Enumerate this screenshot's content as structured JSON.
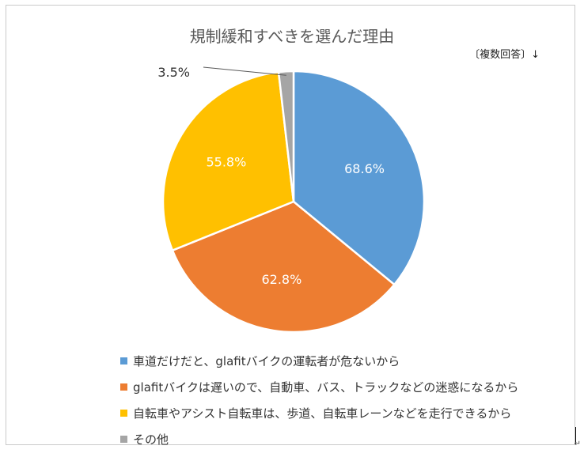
{
  "title": "規制緩和すべきを選んだ理由",
  "note": "〔複数回答〕↓",
  "trail_mark": "↵",
  "chart_data": {
    "type": "pie",
    "title": "規制緩和すべきを選んだ理由",
    "slices": [
      {
        "label": "車道だけだと、glafitバイクの運転者が危ないから",
        "value": 68.6,
        "display": "68.6%",
        "color": "#5b9bd5"
      },
      {
        "label": "glafitバイクは遅いので、自動車、バス、トラックなどの迷惑になるから",
        "value": 62.8,
        "display": "62.8%",
        "color": "#ed7d31"
      },
      {
        "label": "自転車やアシスト自転車は、歩道、自転車レーンなどを走行できるから",
        "value": 55.8,
        "display": "55.8%",
        "color": "#ffc000"
      },
      {
        "label": "その他",
        "value": 3.5,
        "display": "3.5%",
        "color": "#a5a5a5"
      }
    ],
    "legend_position": "bottom"
  }
}
